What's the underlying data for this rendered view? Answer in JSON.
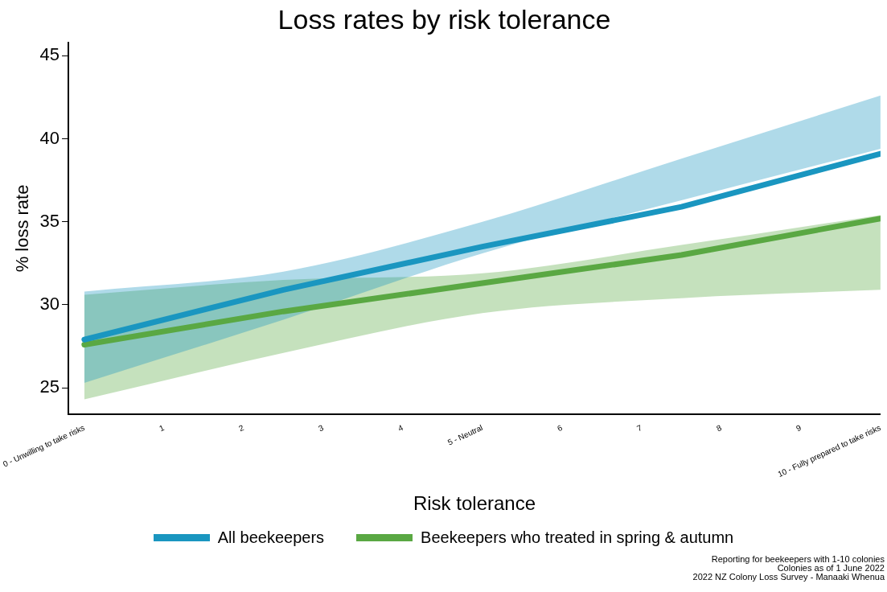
{
  "chart_data": {
    "type": "line",
    "title": "Loss rates by risk tolerance",
    "xlabel": "Risk tolerance",
    "ylabel": "% loss rate",
    "xlim": [
      -0.2,
      10
    ],
    "xticks": [
      {
        "value": 0,
        "label": "0 - Unwilling to take risks"
      },
      1,
      2,
      3,
      4,
      {
        "value": 5,
        "label": "5 - Neutral"
      },
      6,
      7,
      8,
      9,
      {
        "value": 10,
        "label": "10 - Fully prepared to take risks"
      }
    ],
    "ylim": [
      23.4,
      45.8
    ],
    "yticks": [
      25,
      30,
      35,
      40,
      45
    ],
    "grid": false,
    "legend": "bottom",
    "marker": "none",
    "line_style": "solid",
    "series": [
      {
        "name": "All beekeepers",
        "color": "#1a96c0",
        "x": [
          0,
          2.5,
          5,
          7.5,
          10
        ],
        "values": [
          27.9,
          30.9,
          33.5,
          35.9,
          39.1
        ],
        "lower": [
          25.3,
          29.1,
          33.1,
          36.3,
          39.4
        ],
        "upper": [
          30.8,
          32.0,
          35.0,
          38.8,
          42.6
        ]
      },
      {
        "name": "Beekeepers who treated in spring & autumn",
        "color": "#5aa843",
        "x": [
          0,
          2.5,
          5,
          7.5,
          10
        ],
        "values": [
          27.6,
          29.6,
          31.3,
          33.0,
          35.2
        ],
        "lower": [
          24.3,
          27.1,
          29.5,
          30.4,
          30.9
        ],
        "upper": [
          30.6,
          31.5,
          31.9,
          33.6,
          35.4
        ]
      }
    ],
    "annotations": [
      "Reporting for beekeepers with 1-10 colonies",
      "Colonies as of 1 June 2022",
      "2022 NZ Colony Loss Survey - Manaaki Whenua"
    ]
  }
}
